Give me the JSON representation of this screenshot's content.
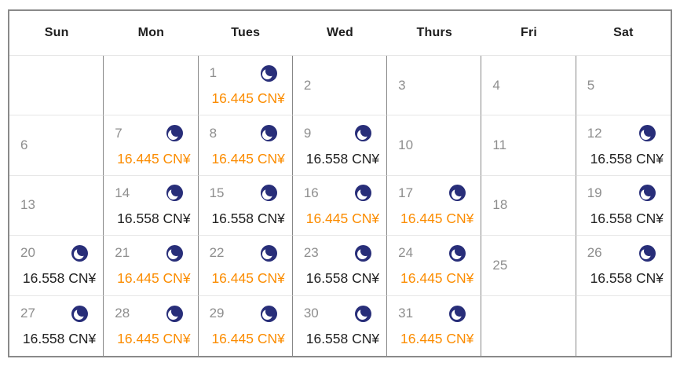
{
  "colors": {
    "price_highlight_orange": "#fb8c00",
    "price_normal_dark": "#212121",
    "day_number_gray": "#8e8e8e",
    "moon_icon_navy": "#282e79",
    "grid_vertical_line": "#878787",
    "grid_horizontal_line": "#e6e6e6",
    "outer_border": "#8a8a8a"
  },
  "weekdays": [
    "Sun",
    "Mon",
    "Tues",
    "Wed",
    "Thurs",
    "Fri",
    "Sat"
  ],
  "weeks": [
    [
      {
        "day": "",
        "has_moon": false,
        "price": "",
        "highlighted": false
      },
      {
        "day": "",
        "has_moon": false,
        "price": "",
        "highlighted": false
      },
      {
        "day": "1",
        "has_moon": true,
        "price": "16.445 CN¥",
        "highlighted": true
      },
      {
        "day": "2",
        "has_moon": false,
        "price": "",
        "highlighted": false
      },
      {
        "day": "3",
        "has_moon": false,
        "price": "",
        "highlighted": false
      },
      {
        "day": "4",
        "has_moon": false,
        "price": "",
        "highlighted": false
      },
      {
        "day": "5",
        "has_moon": false,
        "price": "",
        "highlighted": false
      }
    ],
    [
      {
        "day": "6",
        "has_moon": false,
        "price": "",
        "highlighted": false
      },
      {
        "day": "7",
        "has_moon": true,
        "price": "16.445 CN¥",
        "highlighted": true
      },
      {
        "day": "8",
        "has_moon": true,
        "price": "16.445 CN¥",
        "highlighted": true
      },
      {
        "day": "9",
        "has_moon": true,
        "price": "16.558 CN¥",
        "highlighted": false
      },
      {
        "day": "10",
        "has_moon": false,
        "price": "",
        "highlighted": false
      },
      {
        "day": "11",
        "has_moon": false,
        "price": "",
        "highlighted": false
      },
      {
        "day": "12",
        "has_moon": true,
        "price": "16.558 CN¥",
        "highlighted": false
      }
    ],
    [
      {
        "day": "13",
        "has_moon": false,
        "price": "",
        "highlighted": false
      },
      {
        "day": "14",
        "has_moon": true,
        "price": "16.558 CN¥",
        "highlighted": false
      },
      {
        "day": "15",
        "has_moon": true,
        "price": "16.558 CN¥",
        "highlighted": false
      },
      {
        "day": "16",
        "has_moon": true,
        "price": "16.445 CN¥",
        "highlighted": true
      },
      {
        "day": "17",
        "has_moon": true,
        "price": "16.445 CN¥",
        "highlighted": true
      },
      {
        "day": "18",
        "has_moon": false,
        "price": "",
        "highlighted": false
      },
      {
        "day": "19",
        "has_moon": true,
        "price": "16.558 CN¥",
        "highlighted": false
      }
    ],
    [
      {
        "day": "20",
        "has_moon": true,
        "price": "16.558 CN¥",
        "highlighted": false
      },
      {
        "day": "21",
        "has_moon": true,
        "price": "16.445 CN¥",
        "highlighted": true
      },
      {
        "day": "22",
        "has_moon": true,
        "price": "16.445 CN¥",
        "highlighted": true
      },
      {
        "day": "23",
        "has_moon": true,
        "price": "16.558 CN¥",
        "highlighted": false
      },
      {
        "day": "24",
        "has_moon": true,
        "price": "16.445 CN¥",
        "highlighted": true
      },
      {
        "day": "25",
        "has_moon": false,
        "price": "",
        "highlighted": false
      },
      {
        "day": "26",
        "has_moon": true,
        "price": "16.558 CN¥",
        "highlighted": false
      }
    ],
    [
      {
        "day": "27",
        "has_moon": true,
        "price": "16.558 CN¥",
        "highlighted": false
      },
      {
        "day": "28",
        "has_moon": true,
        "price": "16.445 CN¥",
        "highlighted": true
      },
      {
        "day": "29",
        "has_moon": true,
        "price": "16.445 CN¥",
        "highlighted": true
      },
      {
        "day": "30",
        "has_moon": true,
        "price": "16.558 CN¥",
        "highlighted": false
      },
      {
        "day": "31",
        "has_moon": true,
        "price": "16.445 CN¥",
        "highlighted": true
      },
      {
        "day": "",
        "has_moon": false,
        "price": "",
        "highlighted": false
      },
      {
        "day": "",
        "has_moon": false,
        "price": "",
        "highlighted": false
      }
    ]
  ]
}
